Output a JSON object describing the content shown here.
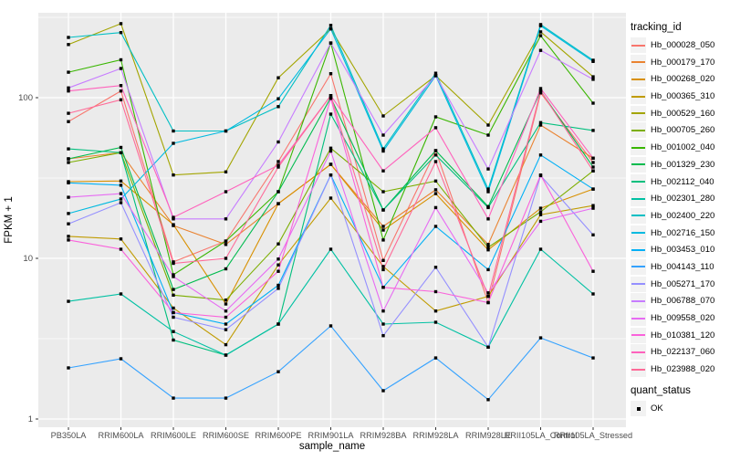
{
  "chart_data": {
    "type": "line",
    "title": "",
    "xlabel": "sample_name",
    "ylabel": "FPKM + 1",
    "yscale": "log10",
    "ylim": [
      0.9,
      340
    ],
    "yticks": [
      1,
      10,
      100
    ],
    "minor_yticks": [
      3.162,
      31.62,
      316.2
    ],
    "grid": true,
    "legend_position": "right",
    "point_shape": "square",
    "point_color": "#000000",
    "categories": [
      "PB350LA",
      "RRIM600LA",
      "RRIM600LE",
      "RRIM600SE",
      "RRIM600PE",
      "RRIM901LA",
      "RRIM928BA",
      "RRIM928LA",
      "RRIM928LE",
      "RRII105LA_Control",
      "RRII105LA_Stressed"
    ],
    "series": [
      {
        "name": "Hb_000028_050",
        "color": "#F8766D",
        "values": [
          71,
          110,
          9.5,
          12.8,
          40,
          141,
          9.7,
          46.8,
          5.3,
          107,
          39.5
        ]
      },
      {
        "name": "Hb_000179_170",
        "color": "#EA8331",
        "values": [
          41.6,
          45.5,
          16,
          12.2,
          21.9,
          38.5,
          15.8,
          26.7,
          12.2,
          67.5,
          42
        ]
      },
      {
        "name": "Hb_000268_020",
        "color": "#D89000",
        "values": [
          30,
          30.3,
          16.2,
          5.2,
          21.9,
          38.5,
          15,
          25.3,
          11.3,
          20.5,
          27
        ]
      },
      {
        "name": "Hb_000365_310",
        "color": "#C09B00",
        "values": [
          13.7,
          13.2,
          4.9,
          2.9,
          9.1,
          23.7,
          8.9,
          4.7,
          5.8,
          18.7,
          21.3
        ]
      },
      {
        "name": "Hb_000529_160",
        "color": "#A3A500",
        "values": [
          214,
          289,
          33,
          34.5,
          133,
          268,
          77,
          137,
          67.5,
          257,
          135
        ]
      },
      {
        "name": "Hb_000705_260",
        "color": "#7CAE00",
        "values": [
          39.5,
          45.5,
          5.9,
          5.5,
          12.3,
          48.5,
          26,
          30.3,
          11.7,
          19.5,
          35
        ]
      },
      {
        "name": "Hb_001002_040",
        "color": "#39B600",
        "values": [
          144,
          172,
          7.9,
          12.8,
          26,
          219,
          13,
          76,
          58.5,
          243,
          92.5
        ]
      },
      {
        "name": "Hb_001329_230",
        "color": "#00BB4E",
        "values": [
          41.6,
          49,
          6.4,
          8.6,
          26,
          100,
          20,
          46.8,
          21,
          110,
          37
        ]
      },
      {
        "name": "Hb_002112_040",
        "color": "#00BF7D",
        "values": [
          48,
          45.5,
          3.1,
          2.5,
          3.9,
          79,
          20,
          44,
          20.7,
          70,
          62.5
        ]
      },
      {
        "name": "Hb_002301_280",
        "color": "#00C1A3",
        "values": [
          5.4,
          6.0,
          3.5,
          2.5,
          3.9,
          11.4,
          3.9,
          4.0,
          2.8,
          11.4,
          6.0
        ]
      },
      {
        "name": "Hb_002400_220",
        "color": "#00BFC4",
        "values": [
          237,
          254,
          62,
          62,
          88,
          282,
          48,
          142,
          27,
          285,
          171
        ]
      },
      {
        "name": "Hb_002716_150",
        "color": "#00BAE0",
        "values": [
          19,
          23.4,
          52,
          62,
          98.5,
          268,
          46.5,
          137,
          26,
          280,
          168
        ]
      },
      {
        "name": "Hb_003453_010",
        "color": "#00B0F6",
        "values": [
          29.5,
          28.5,
          4.6,
          3.9,
          6.8,
          33,
          6.6,
          15.8,
          8.5,
          44,
          27
        ]
      },
      {
        "name": "Hb_004143_110",
        "color": "#35A2FF",
        "values": [
          2.08,
          2.37,
          1.35,
          1.35,
          1.97,
          3.8,
          1.5,
          2.4,
          1.32,
          3.2,
          2.4
        ]
      },
      {
        "name": "Hb_005271_170",
        "color": "#9590FF",
        "values": [
          16.4,
          22.2,
          4.3,
          3.6,
          6.5,
          33,
          3.3,
          8.8,
          2.8,
          32.7,
          14
        ]
      },
      {
        "name": "Hb_006788_070",
        "color": "#C77CFF",
        "values": [
          115,
          152,
          17.6,
          17.6,
          53,
          219,
          58.5,
          137,
          36,
          197,
          130
        ]
      },
      {
        "name": "Hb_009558_020",
        "color": "#E76BF3",
        "values": [
          24,
          25.3,
          7.7,
          4.7,
          9.9,
          46.5,
          4.7,
          20.7,
          6.1,
          17,
          20.5
        ]
      },
      {
        "name": "Hb_010381_120",
        "color": "#FA62DB",
        "values": [
          13,
          11.4,
          4.6,
          4.3,
          8.3,
          99,
          6.6,
          6.2,
          5.3,
          33,
          8.3
        ]
      },
      {
        "name": "Hb_022137_060",
        "color": "#FF62BC",
        "values": [
          110,
          119,
          18,
          26,
          38,
          103,
          35,
          65,
          17.6,
          114,
          42
        ]
      },
      {
        "name": "Hb_023988_020",
        "color": "#FF6A98",
        "values": [
          80,
          97,
          9.3,
          10,
          37,
          103,
          8.5,
          40,
          5.8,
          110,
          35
        ]
      }
    ]
  },
  "legend": {
    "tracking_title": "tracking_id",
    "quant_title": "quant_status",
    "quant_items": [
      {
        "label": "OK"
      }
    ]
  },
  "colors": {
    "panel_bg": "#EBEBEB",
    "grid": "#FFFFFF",
    "tick_text": "#4D4D4D",
    "axis_title": "#000000",
    "legend_key_bg": "#F2F2F2"
  }
}
